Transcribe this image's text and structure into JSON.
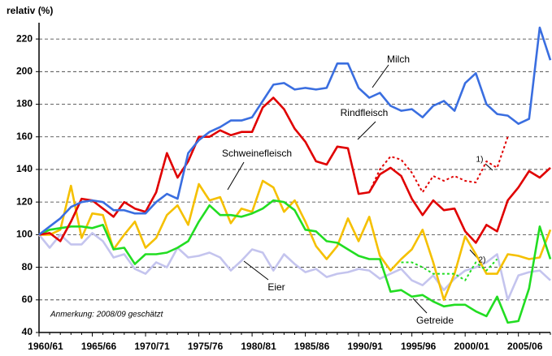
{
  "chart_data": {
    "type": "line",
    "ylabel": "relativ (%)",
    "note": "Anmerkung: 2008/09 geschätzt",
    "categories": [
      "1960/61",
      null,
      null,
      null,
      null,
      "1965/66",
      null,
      null,
      null,
      null,
      "1970/71",
      null,
      null,
      null,
      null,
      "1975/76",
      null,
      null,
      null,
      null,
      "1980/81",
      null,
      null,
      null,
      null,
      "1985/86",
      null,
      null,
      null,
      null,
      "1990/91",
      null,
      null,
      null,
      null,
      "1995/96",
      null,
      null,
      null,
      null,
      "2000/01",
      null,
      null,
      null,
      null,
      "2005/06",
      null,
      null,
      null
    ],
    "ylim": [
      40,
      230
    ],
    "yticks": [
      40,
      60,
      80,
      100,
      120,
      140,
      160,
      180,
      200,
      220
    ],
    "grid": true,
    "series": [
      {
        "name": "Eier",
        "color": "#c4c4ee",
        "dashed": false,
        "values": [
          100,
          92,
          100,
          94,
          94,
          101,
          96,
          86,
          88,
          79,
          76,
          83,
          80,
          92,
          86,
          87,
          89,
          86,
          78,
          84,
          91,
          89,
          78,
          88,
          82,
          77,
          79,
          74,
          76,
          77,
          79,
          78,
          73,
          76,
          79,
          72,
          69,
          75,
          66,
          73,
          78,
          80,
          83,
          88,
          60,
          75,
          77,
          78,
          72
        ]
      },
      {
        "name": "Schweinefleisch",
        "color": "#f5c000",
        "dashed": false,
        "values": [
          100,
          100,
          103,
          130,
          98,
          113,
          112,
          91,
          100,
          108,
          92,
          98,
          112,
          118,
          106,
          131,
          121,
          123,
          107,
          116,
          114,
          133,
          129,
          114,
          121,
          108,
          93,
          85,
          93,
          110,
          96,
          111,
          87,
          78,
          85,
          91,
          103,
          83,
          60,
          76,
          99,
          88,
          76,
          76,
          88,
          87,
          85,
          86,
          103
        ]
      },
      {
        "name": "Getreide",
        "color": "#22dd22",
        "dashed": false,
        "values": [
          100,
          103,
          104,
          105,
          105,
          104,
          106,
          91,
          92,
          82,
          88,
          88,
          89,
          92,
          96,
          108,
          118,
          112,
          112,
          111,
          113,
          116,
          121,
          120,
          115,
          103,
          102,
          96,
          95,
          91,
          87,
          85,
          85,
          65,
          66,
          62,
          63,
          59,
          56,
          57,
          57,
          53,
          50,
          62,
          46,
          47,
          67,
          105,
          85
        ]
      },
      {
        "name": "2)",
        "color": "#22dd22",
        "dashed": true,
        "values": [
          null,
          null,
          null,
          null,
          null,
          null,
          null,
          null,
          null,
          null,
          null,
          null,
          null,
          null,
          null,
          null,
          null,
          null,
          null,
          null,
          null,
          null,
          null,
          null,
          null,
          null,
          null,
          null,
          null,
          null,
          null,
          null,
          null,
          null,
          83,
          83,
          80,
          76,
          76,
          76,
          72,
          83,
          78,
          85,
          null,
          null,
          null,
          null,
          null
        ]
      },
      {
        "name": "Rindfleisch",
        "color": "#e00000",
        "dashed": false,
        "values": [
          100,
          101,
          96,
          108,
          122,
          121,
          116,
          111,
          120,
          116,
          114,
          126,
          150,
          135,
          145,
          160,
          160,
          164,
          161,
          163,
          163,
          178,
          184,
          177,
          165,
          157,
          145,
          143,
          154,
          153,
          125,
          126,
          137,
          141,
          136,
          122,
          112,
          121,
          115,
          116,
          102,
          95,
          106,
          102,
          121,
          129,
          139,
          135,
          141
        ]
      },
      {
        "name": "1)",
        "color": "#e00000",
        "dashed": true,
        "values": [
          null,
          null,
          null,
          null,
          null,
          null,
          null,
          null,
          null,
          null,
          null,
          null,
          null,
          null,
          null,
          null,
          null,
          null,
          null,
          null,
          null,
          null,
          null,
          null,
          null,
          null,
          null,
          null,
          null,
          null,
          null,
          126,
          140,
          148,
          146,
          138,
          126,
          136,
          133,
          136,
          133,
          132,
          145,
          141,
          160,
          null,
          null,
          null,
          null
        ]
      },
      {
        "name": "Milch",
        "color": "#3a6ee0",
        "dashed": false,
        "values": [
          100,
          105,
          110,
          117,
          120,
          121,
          120,
          115,
          115,
          113,
          113,
          120,
          125,
          122,
          150,
          158,
          163,
          166,
          170,
          170,
          172,
          182,
          192,
          193,
          189,
          190,
          189,
          190,
          205,
          205,
          190,
          184,
          187,
          179,
          176,
          177,
          172,
          179,
          182,
          176,
          193,
          199,
          180,
          174,
          173,
          168,
          171,
          227,
          207
        ]
      }
    ]
  }
}
